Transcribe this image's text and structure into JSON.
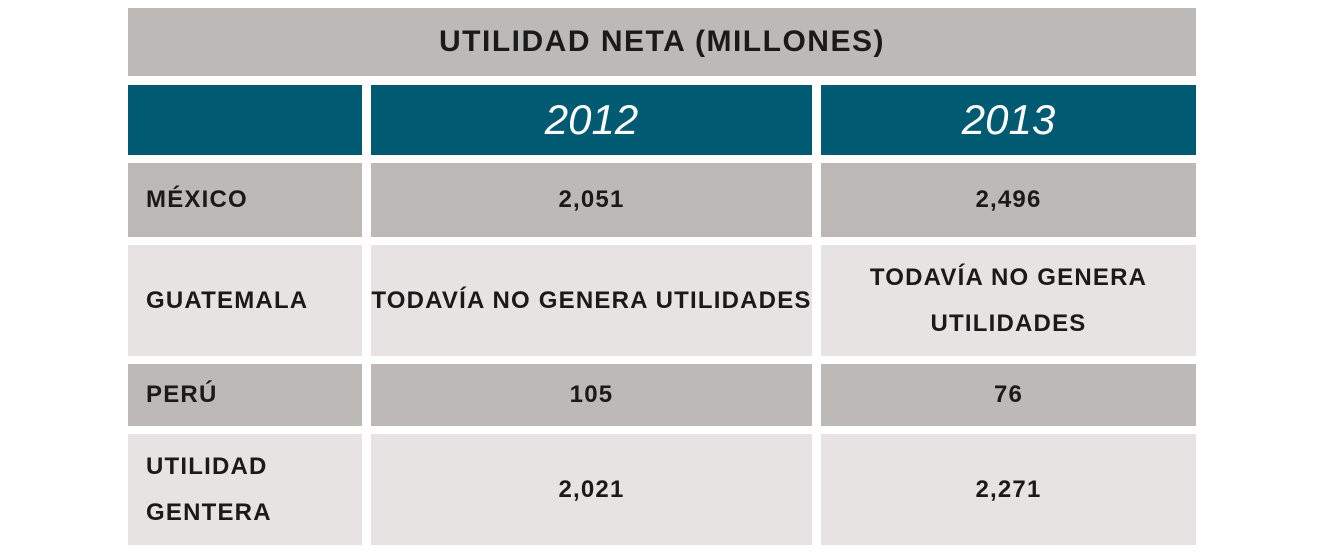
{
  "title": "UTILIDAD NETA (MILLONES)",
  "header": {
    "corner": "",
    "years": [
      "2012",
      "2013"
    ]
  },
  "rows": [
    {
      "label": "MÉXICO",
      "values": [
        "2,051",
        "2,496"
      ]
    },
    {
      "label": "GUATEMALA",
      "values": [
        "TODAVÍA NO GENERA UTILIDADES",
        "TODAVÍA NO GENERA UTILIDADES"
      ]
    },
    {
      "label": "PERÚ",
      "values": [
        "105",
        "76"
      ]
    },
    {
      "label": "UTILIDAD GENTERA",
      "values": [
        "2,021",
        "2,271"
      ]
    }
  ],
  "colors": {
    "header_teal": "#005b72",
    "dark_row": "#bdb9b6",
    "light_row": "#e6e3e2"
  }
}
